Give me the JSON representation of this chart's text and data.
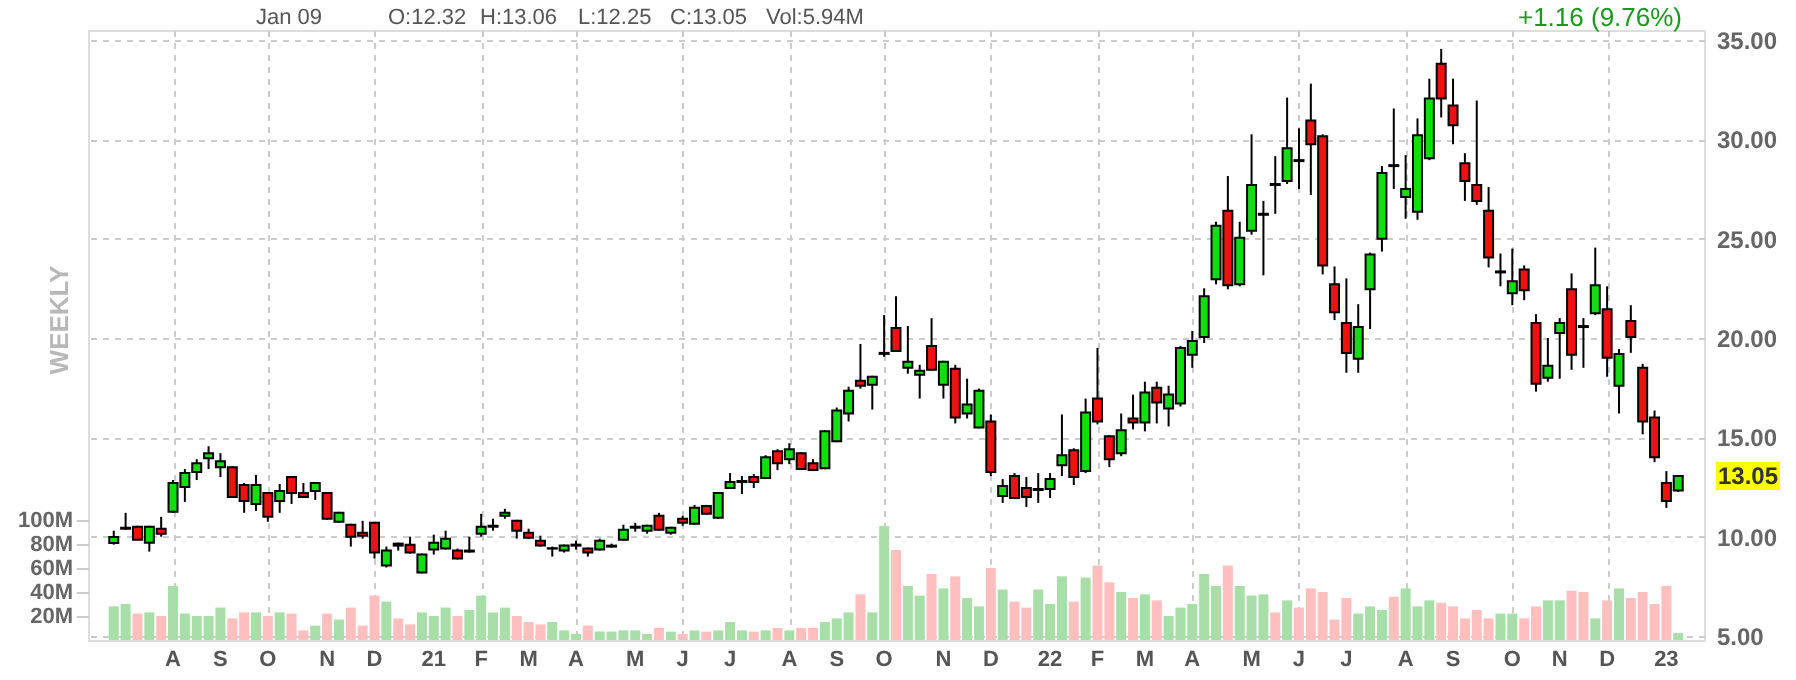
{
  "chart_data": {
    "type": "candlestick",
    "categories": [
      null,
      null,
      null,
      null,
      null,
      "A",
      null,
      null,
      null,
      "S",
      null,
      null,
      null,
      "O",
      null,
      null,
      null,
      null,
      "N",
      null,
      null,
      null,
      "D",
      null,
      null,
      null,
      null,
      "21",
      null,
      null,
      null,
      "F",
      null,
      null,
      null,
      "M",
      null,
      null,
      null,
      "A",
      null,
      null,
      null,
      null,
      "M",
      null,
      null,
      null,
      "J",
      null,
      null,
      null,
      "J",
      null,
      null,
      null,
      null,
      "A",
      null,
      null,
      null,
      "S",
      null,
      null,
      null,
      "O",
      null,
      null,
      null,
      null,
      "N",
      null,
      null,
      null,
      "D",
      null,
      null,
      null,
      null,
      "22",
      null,
      null,
      null,
      "F",
      null,
      null,
      null,
      "M",
      null,
      null,
      null,
      "A",
      null,
      null,
      null,
      null,
      "M",
      null,
      null,
      null,
      "J",
      null,
      null,
      null,
      "J",
      null,
      null,
      null,
      null,
      "A",
      null,
      null,
      null,
      "S",
      null,
      null,
      null,
      null,
      "O",
      null,
      null,
      null,
      "N",
      null,
      null,
      null,
      "D",
      null,
      null,
      null,
      null,
      "23",
      null
    ],
    "ohlc": [
      [
        9.68,
        10.3,
        9.6,
        9.98
      ],
      [
        10.4,
        11.2,
        10.35,
        10.45
      ],
      [
        10.5,
        10.55,
        9.85,
        9.85
      ],
      [
        9.7,
        10.55,
        9.25,
        10.5
      ],
      [
        10.4,
        11.0,
        10.0,
        10.15
      ],
      [
        11.25,
        12.85,
        11.2,
        12.7
      ],
      [
        12.5,
        13.4,
        11.75,
        13.2
      ],
      [
        13.25,
        13.9,
        12.85,
        13.7
      ],
      [
        13.95,
        14.55,
        13.4,
        14.2
      ],
      [
        13.5,
        14.2,
        13.0,
        13.8
      ],
      [
        13.5,
        13.55,
        11.95,
        12.0
      ],
      [
        12.6,
        12.7,
        11.2,
        11.8
      ],
      [
        11.65,
        13.1,
        11.3,
        12.6
      ],
      [
        12.2,
        12.25,
        10.75,
        11.0
      ],
      [
        11.8,
        12.65,
        11.2,
        12.3
      ],
      [
        13.0,
        13.05,
        11.65,
        12.2
      ],
      [
        12.2,
        12.7,
        11.95,
        12.0
      ],
      [
        12.3,
        12.75,
        11.85,
        12.7
      ],
      [
        12.2,
        12.25,
        10.85,
        10.9
      ],
      [
        10.75,
        11.25,
        10.7,
        11.2
      ],
      [
        10.6,
        10.65,
        9.5,
        10.0
      ],
      [
        10.2,
        10.8,
        9.9,
        10.05
      ],
      [
        10.7,
        10.75,
        8.9,
        9.2
      ],
      [
        8.55,
        9.5,
        8.45,
        9.3
      ],
      [
        9.65,
        9.7,
        9.3,
        9.55
      ],
      [
        9.6,
        10.0,
        9.15,
        9.2
      ],
      [
        8.2,
        9.15,
        8.15,
        9.1
      ],
      [
        9.35,
        10.1,
        9.1,
        9.7
      ],
      [
        9.4,
        10.3,
        9.35,
        9.9
      ],
      [
        9.3,
        9.4,
        8.85,
        8.9
      ],
      [
        9.25,
        10.0,
        9.2,
        9.3
      ],
      [
        10.15,
        11.15,
        10.0,
        10.5
      ],
      [
        10.5,
        10.9,
        10.3,
        10.55
      ],
      [
        11.05,
        11.4,
        10.9,
        11.2
      ],
      [
        10.8,
        10.85,
        9.9,
        10.3
      ],
      [
        10.2,
        10.4,
        9.9,
        9.95
      ],
      [
        9.8,
        10.05,
        9.5,
        9.55
      ],
      [
        9.4,
        9.5,
        9.0,
        9.42
      ],
      [
        9.3,
        9.6,
        9.2,
        9.55
      ],
      [
        9.55,
        9.8,
        9.35,
        9.6
      ],
      [
        9.4,
        9.45,
        9.0,
        9.2
      ],
      [
        9.35,
        9.9,
        9.3,
        9.8
      ],
      [
        9.5,
        9.65,
        9.45,
        9.55
      ],
      [
        9.85,
        10.6,
        9.8,
        10.35
      ],
      [
        10.45,
        10.7,
        10.25,
        10.5
      ],
      [
        10.3,
        10.6,
        10.15,
        10.55
      ],
      [
        11.05,
        11.2,
        10.3,
        10.35
      ],
      [
        10.2,
        10.5,
        10.1,
        10.45
      ],
      [
        10.9,
        11.05,
        10.55,
        10.7
      ],
      [
        10.65,
        11.6,
        10.6,
        11.45
      ],
      [
        11.55,
        11.6,
        11.1,
        11.15
      ],
      [
        10.95,
        12.25,
        10.9,
        12.2
      ],
      [
        12.45,
        13.2,
        12.4,
        12.75
      ],
      [
        12.75,
        13.05,
        12.15,
        12.8
      ],
      [
        13.0,
        13.15,
        12.45,
        12.75
      ],
      [
        12.95,
        14.1,
        12.9,
        14.0
      ],
      [
        14.3,
        14.4,
        13.35,
        13.7
      ],
      [
        13.9,
        14.7,
        13.65,
        14.4
      ],
      [
        14.2,
        14.25,
        13.35,
        13.4
      ],
      [
        13.7,
        13.9,
        13.3,
        13.35
      ],
      [
        13.45,
        15.35,
        13.4,
        15.3
      ],
      [
        14.8,
        16.5,
        14.75,
        16.35
      ],
      [
        16.2,
        17.55,
        15.8,
        17.35
      ],
      [
        17.85,
        19.7,
        17.45,
        17.6
      ],
      [
        17.65,
        18.1,
        16.4,
        18.05
      ],
      [
        19.2,
        21.15,
        19.05,
        19.25
      ],
      [
        20.5,
        22.1,
        19.3,
        19.35
      ],
      [
        18.5,
        20.6,
        18.2,
        18.8
      ],
      [
        18.15,
        18.65,
        16.95,
        18.35
      ],
      [
        19.6,
        21.0,
        18.35,
        18.4
      ],
      [
        17.65,
        18.85,
        16.95,
        18.8
      ],
      [
        18.45,
        18.65,
        15.7,
        16.0
      ],
      [
        16.2,
        17.95,
        15.95,
        16.65
      ],
      [
        15.5,
        17.45,
        15.45,
        17.35
      ],
      [
        15.8,
        16.15,
        13.05,
        13.25
      ],
      [
        12.05,
        12.9,
        11.7,
        12.55
      ],
      [
        13.05,
        13.2,
        11.9,
        11.95
      ],
      [
        12.45,
        13.0,
        11.5,
        12.0
      ],
      [
        12.35,
        13.2,
        11.7,
        12.4
      ],
      [
        12.4,
        13.2,
        11.95,
        12.9
      ],
      [
        13.6,
        16.15,
        13.05,
        14.1
      ],
      [
        14.35,
        14.45,
        12.6,
        13.0
      ],
      [
        13.3,
        16.95,
        13.2,
        16.25
      ],
      [
        16.95,
        19.5,
        15.65,
        15.8
      ],
      [
        15.05,
        15.1,
        13.5,
        13.9
      ],
      [
        14.2,
        16.2,
        14.05,
        15.35
      ],
      [
        15.95,
        17.15,
        15.4,
        15.75
      ],
      [
        15.75,
        17.8,
        15.3,
        17.25
      ],
      [
        17.5,
        17.8,
        15.7,
        16.75
      ],
      [
        16.45,
        17.6,
        15.55,
        17.15
      ],
      [
        16.7,
        19.6,
        16.55,
        19.5
      ],
      [
        19.15,
        20.35,
        18.5,
        19.85
      ],
      [
        20.05,
        22.5,
        19.75,
        22.1
      ],
      [
        22.95,
        25.85,
        22.7,
        25.65
      ],
      [
        26.4,
        28.15,
        22.45,
        22.65
      ],
      [
        22.7,
        25.85,
        22.6,
        25.05
      ],
      [
        25.4,
        30.25,
        25.2,
        27.7
      ],
      [
        26.2,
        26.9,
        23.15,
        26.25
      ],
      [
        27.75,
        29.15,
        26.25,
        27.7
      ],
      [
        27.9,
        32.1,
        27.75,
        29.55
      ],
      [
        28.95,
        30.55,
        27.5,
        28.9
      ],
      [
        30.95,
        32.8,
        27.2,
        29.75
      ],
      [
        30.15,
        30.25,
        23.2,
        23.65
      ],
      [
        22.7,
        23.6,
        20.9,
        21.3
      ],
      [
        20.75,
        23.0,
        18.25,
        19.25
      ],
      [
        18.95,
        21.7,
        18.25,
        20.55
      ],
      [
        22.45,
        24.3,
        20.45,
        24.2
      ],
      [
        25.0,
        28.65,
        24.35,
        28.3
      ],
      [
        28.7,
        31.55,
        27.5,
        28.65
      ],
      [
        27.1,
        29.2,
        26.0,
        27.5
      ],
      [
        26.35,
        31.05,
        25.95,
        30.2
      ],
      [
        29.05,
        33.05,
        28.95,
        32.05
      ],
      [
        33.8,
        34.55,
        31.1,
        32.05
      ],
      [
        31.7,
        33.05,
        29.75,
        30.7
      ],
      [
        28.8,
        29.3,
        26.9,
        27.9
      ],
      [
        27.7,
        31.95,
        26.7,
        26.9
      ],
      [
        26.4,
        27.6,
        23.55,
        24.05
      ],
      [
        23.3,
        24.25,
        22.6,
        23.35
      ],
      [
        22.25,
        24.5,
        21.65,
        22.85
      ],
      [
        23.45,
        23.65,
        21.9,
        22.4
      ],
      [
        20.75,
        21.2,
        17.3,
        17.7
      ],
      [
        18.0,
        20.0,
        17.8,
        18.6
      ],
      [
        20.25,
        21.0,
        17.95,
        20.75
      ],
      [
        22.45,
        23.25,
        18.4,
        19.15
      ],
      [
        20.6,
        21.0,
        18.5,
        20.55
      ],
      [
        21.25,
        24.55,
        21.15,
        22.65
      ],
      [
        21.45,
        22.6,
        18.05,
        19.0
      ],
      [
        17.6,
        19.45,
        16.2,
        19.2
      ],
      [
        20.85,
        21.65,
        19.25,
        20.05
      ],
      [
        18.5,
        18.7,
        15.15,
        15.8
      ],
      [
        16.0,
        16.35,
        13.75,
        14.0
      ],
      [
        12.7,
        13.3,
        11.45,
        11.8
      ],
      [
        12.32,
        13.06,
        12.25,
        13.05
      ]
    ],
    "colors": [
      "#11dd11",
      "#11dd11",
      "#ee1111",
      "#11dd11",
      "#ee1111",
      "#11dd11",
      "#11dd11",
      "#11dd11",
      "#11dd11",
      "#11dd11",
      "#ee1111",
      "#ee1111",
      "#11dd11",
      "#ee1111",
      "#11dd11",
      "#ee1111",
      "#ee1111",
      "#11dd11",
      "#ee1111",
      "#11dd11",
      "#ee1111",
      "#ee1111",
      "#ee1111",
      "#11dd11",
      "#ee1111",
      "#ee1111",
      "#11dd11",
      "#11dd11",
      "#11dd11",
      "#ee1111",
      "#11dd11",
      "#11dd11",
      "#11dd11",
      "#11dd11",
      "#ee1111",
      "#ee1111",
      "#ee1111",
      "#11dd11",
      "#11dd11",
      "#11dd11",
      "#ee1111",
      "#11dd11",
      "#11dd11",
      "#11dd11",
      "#11dd11",
      "#11dd11",
      "#ee1111",
      "#11dd11",
      "#ee1111",
      "#11dd11",
      "#ee1111",
      "#11dd11",
      "#11dd11",
      "#11dd11",
      "#ee1111",
      "#11dd11",
      "#ee1111",
      "#11dd11",
      "#ee1111",
      "#ee1111",
      "#11dd11",
      "#11dd11",
      "#11dd11",
      "#ee1111",
      "#11dd11",
      "#11dd11",
      "#ee1111",
      "#11dd11",
      "#11dd11",
      "#ee1111",
      "#11dd11",
      "#ee1111",
      "#11dd11",
      "#11dd11",
      "#ee1111",
      "#11dd11",
      "#ee1111",
      "#ee1111",
      "#11dd11",
      "#11dd11",
      "#11dd11",
      "#ee1111",
      "#11dd11",
      "#ee1111",
      "#ee1111",
      "#11dd11",
      "#ee1111",
      "#11dd11",
      "#ee1111",
      "#11dd11",
      "#11dd11",
      "#11dd11",
      "#11dd11",
      "#11dd11",
      "#ee1111",
      "#11dd11",
      "#11dd11",
      "#11dd11",
      "#ee1111",
      "#11dd11",
      "#ee1111",
      "#ee1111",
      "#ee1111",
      "#ee1111",
      "#ee1111",
      "#11dd11",
      "#11dd11",
      "#11dd11",
      "#ee1111",
      "#11dd11",
      "#11dd11",
      "#11dd11",
      "#ee1111",
      "#ee1111",
      "#ee1111",
      "#ee1111",
      "#ee1111",
      "#11dd11",
      "#11dd11",
      "#ee1111",
      "#ee1111",
      "#11dd11",
      "#11dd11",
      "#ee1111",
      "#ee1111",
      "#11dd11",
      "#ee1111",
      "#11dd11",
      "#ee1111",
      "#ee1111",
      "#ee1111",
      "#ee1111",
      "#11dd11"
    ],
    "series": [
      {
        "type": "bar",
        "axis": "y2",
        "values": [
          28,
          30,
          22,
          23,
          20,
          45,
          22,
          20,
          20,
          27,
          18,
          23,
          23,
          20,
          23,
          22,
          8,
          12,
          22,
          17,
          27,
          12,
          37,
          32,
          18,
          13,
          23,
          20,
          27,
          20,
          25,
          37,
          23,
          27,
          20,
          15,
          13,
          15,
          8,
          5,
          12,
          7,
          7,
          8,
          8,
          5,
          10,
          7,
          5,
          8,
          7,
          8,
          15,
          8,
          7,
          8,
          10,
          8,
          10,
          10,
          15,
          18,
          23,
          38,
          23,
          95,
          75,
          45,
          37,
          55,
          43,
          53,
          35,
          28,
          60,
          42,
          32,
          27,
          42,
          30,
          53,
          32,
          52,
          62,
          48,
          40,
          35,
          38,
          33,
          20,
          27,
          30,
          55,
          45,
          62,
          45,
          37,
          38,
          23,
          33,
          27,
          43,
          40,
          17,
          35,
          22,
          28,
          25,
          36,
          43,
          28,
          33,
          31,
          28,
          18,
          25,
          18,
          22,
          22,
          18,
          28,
          33,
          33,
          41,
          40,
          18,
          33,
          43,
          35,
          40,
          30,
          45,
          5.94
        ],
        "colors": [
          "#a8dea8",
          "#a8dea8",
          "#ffbfbf",
          "#a8dea8",
          "#ffbfbf",
          "#a8dea8",
          "#a8dea8",
          "#a8dea8",
          "#a8dea8",
          "#a8dea8",
          "#ffbfbf",
          "#ffbfbf",
          "#a8dea8",
          "#ffbfbf",
          "#a8dea8",
          "#ffbfbf",
          "#ffbfbf",
          "#a8dea8",
          "#ffbfbf",
          "#a8dea8",
          "#ffbfbf",
          "#ffbfbf",
          "#ffbfbf",
          "#a8dea8",
          "#ffbfbf",
          "#ffbfbf",
          "#a8dea8",
          "#a8dea8",
          "#a8dea8",
          "#ffbfbf",
          "#a8dea8",
          "#a8dea8",
          "#a8dea8",
          "#a8dea8",
          "#ffbfbf",
          "#ffbfbf",
          "#ffbfbf",
          "#a8dea8",
          "#a8dea8",
          "#a8dea8",
          "#ffbfbf",
          "#a8dea8",
          "#a8dea8",
          "#a8dea8",
          "#a8dea8",
          "#a8dea8",
          "#ffbfbf",
          "#a8dea8",
          "#ffbfbf",
          "#a8dea8",
          "#ffbfbf",
          "#a8dea8",
          "#a8dea8",
          "#a8dea8",
          "#ffbfbf",
          "#a8dea8",
          "#ffbfbf",
          "#a8dea8",
          "#ffbfbf",
          "#ffbfbf",
          "#a8dea8",
          "#a8dea8",
          "#a8dea8",
          "#ffbfbf",
          "#a8dea8",
          "#a8dea8",
          "#ffbfbf",
          "#a8dea8",
          "#a8dea8",
          "#ffbfbf",
          "#a8dea8",
          "#ffbfbf",
          "#a8dea8",
          "#a8dea8",
          "#ffbfbf",
          "#a8dea8",
          "#ffbfbf",
          "#ffbfbf",
          "#a8dea8",
          "#a8dea8",
          "#a8dea8",
          "#ffbfbf",
          "#a8dea8",
          "#ffbfbf",
          "#ffbfbf",
          "#a8dea8",
          "#ffbfbf",
          "#a8dea8",
          "#ffbfbf",
          "#a8dea8",
          "#a8dea8",
          "#a8dea8",
          "#a8dea8",
          "#a8dea8",
          "#ffbfbf",
          "#a8dea8",
          "#a8dea8",
          "#a8dea8",
          "#ffbfbf",
          "#a8dea8",
          "#ffbfbf",
          "#ffbfbf",
          "#ffbfbf",
          "#ffbfbf",
          "#ffbfbf",
          "#a8dea8",
          "#a8dea8",
          "#a8dea8",
          "#ffbfbf",
          "#a8dea8",
          "#a8dea8",
          "#a8dea8",
          "#ffbfbf",
          "#ffbfbf",
          "#ffbfbf",
          "#ffbfbf",
          "#ffbfbf",
          "#a8dea8",
          "#a8dea8",
          "#ffbfbf",
          "#ffbfbf",
          "#a8dea8",
          "#a8dea8",
          "#ffbfbf",
          "#ffbfbf",
          "#a8dea8",
          "#ffbfbf",
          "#a8dea8",
          "#ffbfbf",
          "#ffbfbf",
          "#ffbfbf",
          "#ffbfbf",
          "#a8dea8"
        ]
      }
    ],
    "ylim": [
      4.8,
      35.5
    ],
    "yticks": [
      {
        "value": 5,
        "label": "5.00"
      },
      {
        "value": 10,
        "label": "10.00"
      },
      {
        "value": 15,
        "label": "15.00"
      },
      {
        "value": 20,
        "label": "20.00"
      },
      {
        "value": 25,
        "label": "25.00"
      },
      {
        "value": 30,
        "label": "30.00"
      },
      {
        "value": 35,
        "label": "35.00"
      }
    ],
    "y2lim": [
      0,
      508
    ],
    "y2ticks": [
      {
        "value": 20,
        "label": "20M"
      },
      {
        "value": 40,
        "label": "40M"
      },
      {
        "value": 60,
        "label": "60M"
      },
      {
        "value": 80,
        "label": "80M"
      },
      {
        "value": 100,
        "label": "100M"
      }
    ],
    "grid": true,
    "annotations": [
      "Jan 09",
      "O:12.32",
      "H:13.06",
      "L:12.25",
      "C:13.05",
      "Vol:5.94M",
      "+1.16 (9.76%)",
      "WEEKLY",
      "13.05"
    ]
  }
}
